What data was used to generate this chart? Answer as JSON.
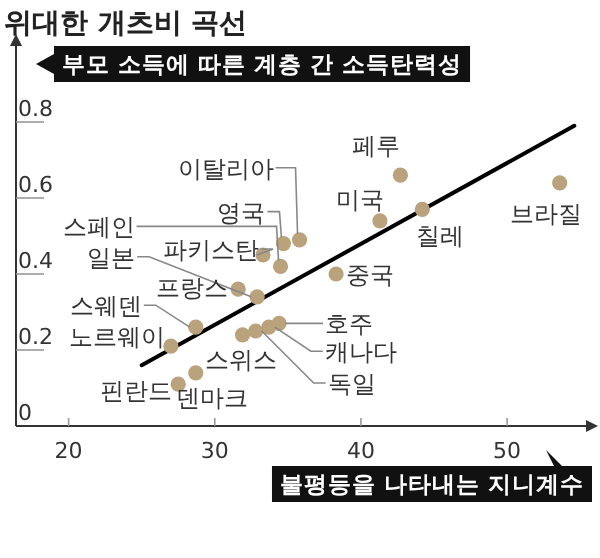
{
  "chart_data": {
    "type": "scatter",
    "title": "위대한 개츠비 곡선",
    "ylabel": "부모 소득에 따른 계층 간 소득탄력성",
    "xlabel": "불평등을 나타내는 지니계수",
    "xlim": [
      16.4,
      55.4
    ],
    "ylim": [
      0,
      1
    ],
    "xticks": [
      20,
      30,
      40,
      50
    ],
    "yticks": [
      0,
      0.2,
      0.4,
      0.6,
      0.8
    ],
    "series": [
      {
        "color": "#b9a27c",
        "marker": "circle",
        "x": [
          42.7,
          41.3,
          44.2,
          53.6,
          38.3,
          35.8,
          34.7,
          34.5,
          33.3,
          32.9,
          31.6,
          28.7,
          27.0,
          27.5,
          28.7,
          31.9,
          32.8,
          33.7,
          34.4
        ],
        "values": [
          0.66,
          0.54,
          0.57,
          0.64,
          0.4,
          0.49,
          0.48,
          0.42,
          0.45,
          0.34,
          0.36,
          0.26,
          0.21,
          0.11,
          0.14,
          0.24,
          0.25,
          0.26,
          0.27
        ]
      },
      {
        "type": "line",
        "color": "#000000",
        "x": [
          25,
          54.6
        ],
        "values": [
          0.16,
          0.79
        ]
      }
    ],
    "annotations": [
      {
        "text": "페루",
        "x": 42.7,
        "y": 0.66
      },
      {
        "text": "미국",
        "x": 41.3,
        "y": 0.54
      },
      {
        "text": "칠레",
        "x": 44.2,
        "y": 0.57
      },
      {
        "text": "브라질",
        "x": 53.6,
        "y": 0.64
      },
      {
        "text": "중국",
        "x": 38.3,
        "y": 0.4
      },
      {
        "text": "이탈리아",
        "x": 35.8,
        "y": 0.49
      },
      {
        "text": "영국",
        "x": 34.7,
        "y": 0.48
      },
      {
        "text": "스페인",
        "x": 34.5,
        "y": 0.42
      },
      {
        "text": "파키스탄",
        "x": 33.3,
        "y": 0.45
      },
      {
        "text": "일본",
        "x": 32.9,
        "y": 0.34
      },
      {
        "text": "프랑스",
        "x": 31.6,
        "y": 0.36
      },
      {
        "text": "스웨덴",
        "x": 28.7,
        "y": 0.26
      },
      {
        "text": "노르웨이",
        "x": 27.0,
        "y": 0.21
      },
      {
        "text": "핀란드",
        "x": 27.5,
        "y": 0.11
      },
      {
        "text": "덴마크",
        "x": 28.7,
        "y": 0.14
      },
      {
        "text": "스위스",
        "x": 31.9,
        "y": 0.24
      },
      {
        "text": "독일",
        "x": 32.8,
        "y": 0.25
      },
      {
        "text": "캐나다",
        "x": 33.7,
        "y": 0.26
      },
      {
        "text": "호주",
        "x": 34.4,
        "y": 0.27
      }
    ]
  }
}
